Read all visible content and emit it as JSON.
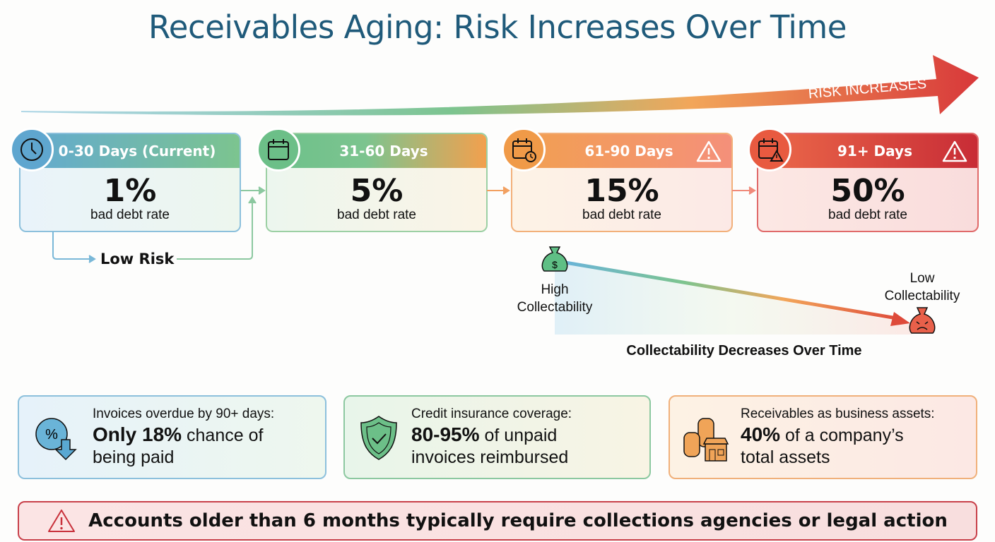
{
  "title": "Receivables Aging: Risk Increases Over Time",
  "risk_arrow_label": "RISK INCREASES",
  "stages": [
    {
      "label": "0-30 Days (Current)",
      "rate": "1%",
      "caption": "bad debt rate",
      "icon": "clock-icon",
      "color": "#6aafd4"
    },
    {
      "label": "31-60 Days",
      "rate": "5%",
      "caption": "bad debt rate",
      "icon": "calendar-icon",
      "color": "#6cc08a"
    },
    {
      "label": "61-90 Days",
      "rate": "15%",
      "caption": "bad debt rate",
      "icon": "calendar-clock-icon",
      "color": "#f0a050"
    },
    {
      "label": "91+ Days",
      "rate": "50%",
      "caption": "bad debt rate",
      "icon": "calendar-warning-icon",
      "color": "#d83a3a"
    }
  ],
  "low_risk_label": "Low Risk",
  "collectability": {
    "high_label": "High Collectability",
    "low_label": "Low Collectability",
    "caption": "Collectability Decreases Over Time"
  },
  "facts": [
    {
      "line1": "Invoices overdue by 90+ days:",
      "bold": "Only 18%",
      "rest": " chance of",
      "line3": "being paid",
      "icon": "percent-down-icon"
    },
    {
      "line1": "Credit insurance coverage:",
      "bold": "80-95%",
      "rest": " of unpaid",
      "line3": "invoices reimbursed",
      "icon": "shield-check-icon"
    },
    {
      "line1": "Receivables as business assets:",
      "bold": "40%",
      "rest": " of a company’s",
      "line3": "total assets",
      "icon": "coins-store-icon"
    }
  ],
  "banner": "Accounts older than 6 months typically require collections agencies or legal action"
}
